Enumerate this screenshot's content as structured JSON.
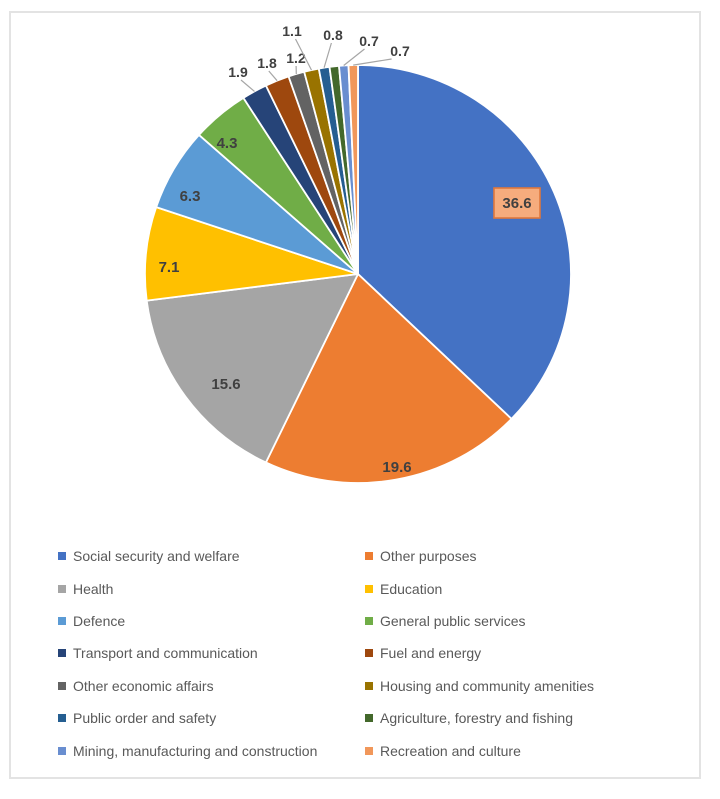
{
  "chart_data": {
    "type": "pie",
    "title": "",
    "legend_position": "bottom",
    "label_text_color": "#404040",
    "highlight_label": {
      "applies_to": "Social security and welfare",
      "fill": "#F6AC7D",
      "border": "#E0773C"
    },
    "series": [
      {
        "name": "Social security and welfare",
        "value": 36.6,
        "label": "36.6",
        "color": "#4472C4"
      },
      {
        "name": "Other purposes",
        "value": 19.6,
        "label": "19.6",
        "color": "#ED7D31"
      },
      {
        "name": "Health",
        "value": 15.6,
        "label": "15.6",
        "color": "#A5A5A5"
      },
      {
        "name": "Education",
        "value": 7.1,
        "label": "7.1",
        "color": "#FFC000"
      },
      {
        "name": "Defence",
        "value": 6.3,
        "label": "6.3",
        "color": "#5B9BD5"
      },
      {
        "name": "General public services",
        "value": 4.3,
        "label": "4.3",
        "color": "#70AD47"
      },
      {
        "name": "Transport and communication",
        "value": 1.9,
        "label": "1.9",
        "color": "#264478"
      },
      {
        "name": "Fuel and energy",
        "value": 1.8,
        "label": "1.8",
        "color": "#9E480E"
      },
      {
        "name": "Other economic affairs",
        "value": 1.2,
        "label": "1.2",
        "color": "#636363"
      },
      {
        "name": "Housing and community amenities",
        "value": 1.1,
        "label": "1.1",
        "color": "#997300"
      },
      {
        "name": "Public order and safety",
        "value": 0.8,
        "label": "0.8",
        "color": "#255E91"
      },
      {
        "name": "Agriculture, forestry and fishing",
        "value": 0.7,
        "label": null,
        "color": "#43682B"
      },
      {
        "name": "Mining, manufacturing and construction",
        "value": 0.7,
        "label": "0.7",
        "color": "#698ED0"
      },
      {
        "name": "Recreation and culture",
        "value": 0.7,
        "label": "0.7",
        "color": "#F1975A"
      }
    ]
  }
}
